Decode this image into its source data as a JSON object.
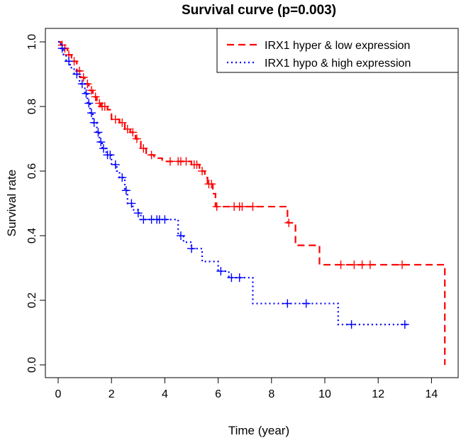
{
  "chart_data": {
    "type": "line",
    "title": "Survival curve (p=0.003)",
    "xlabel": "Time (year)",
    "ylabel": "Survival rate",
    "xlim": [
      0,
      15
    ],
    "ylim": [
      0,
      1.0
    ],
    "xticks": [
      "0",
      "2",
      "4",
      "6",
      "8",
      "10",
      "12",
      "14"
    ],
    "yticks": [
      "0.0",
      "0.2",
      "0.4",
      "0.6",
      "0.8",
      "1.0"
    ],
    "grid": false,
    "legend": {
      "placement": "top-right",
      "entries": [
        "IRX1 hyper & low expression",
        "IRX1 hypo & high expression"
      ]
    },
    "series": [
      {
        "name": "IRX1 hyper & low expression",
        "color": "#ff0000",
        "dash": "dashed",
        "steps": [
          [
            0,
            1.0
          ],
          [
            0.1,
            0.99
          ],
          [
            0.2,
            0.98
          ],
          [
            0.35,
            0.96
          ],
          [
            0.5,
            0.94
          ],
          [
            0.7,
            0.91
          ],
          [
            0.85,
            0.89
          ],
          [
            1.0,
            0.87
          ],
          [
            1.15,
            0.85
          ],
          [
            1.3,
            0.83
          ],
          [
            1.45,
            0.81
          ],
          [
            1.6,
            0.8
          ],
          [
            1.85,
            0.79
          ],
          [
            2.0,
            0.76
          ],
          [
            2.3,
            0.75
          ],
          [
            2.5,
            0.73
          ],
          [
            2.7,
            0.72
          ],
          [
            2.9,
            0.7
          ],
          [
            3.1,
            0.67
          ],
          [
            3.3,
            0.65
          ],
          [
            3.6,
            0.64
          ],
          [
            3.9,
            0.63
          ],
          [
            5.0,
            0.62
          ],
          [
            5.3,
            0.6
          ],
          [
            5.5,
            0.58
          ],
          [
            5.6,
            0.56
          ],
          [
            5.8,
            0.53
          ],
          [
            5.9,
            0.49
          ],
          [
            8.6,
            0.44
          ],
          [
            8.9,
            0.37
          ],
          [
            9.8,
            0.31
          ],
          [
            14.5,
            0.0
          ]
        ],
        "end": 14.5,
        "censor": [
          [
            0.15,
            0.99
          ],
          [
            0.25,
            0.97
          ],
          [
            0.4,
            0.95
          ],
          [
            0.6,
            0.93
          ],
          [
            0.8,
            0.9
          ],
          [
            0.95,
            0.88
          ],
          [
            1.1,
            0.86
          ],
          [
            1.25,
            0.84
          ],
          [
            1.4,
            0.82
          ],
          [
            1.55,
            0.8
          ],
          [
            1.65,
            0.8
          ],
          [
            1.75,
            0.8
          ],
          [
            2.15,
            0.76
          ],
          [
            2.4,
            0.75
          ],
          [
            2.6,
            0.73
          ],
          [
            2.8,
            0.72
          ],
          [
            2.95,
            0.7
          ],
          [
            3.2,
            0.67
          ],
          [
            3.5,
            0.65
          ],
          [
            4.2,
            0.63
          ],
          [
            4.5,
            0.63
          ],
          [
            4.6,
            0.63
          ],
          [
            4.8,
            0.63
          ],
          [
            5.1,
            0.62
          ],
          [
            5.2,
            0.61
          ],
          [
            5.4,
            0.6
          ],
          [
            5.65,
            0.56
          ],
          [
            5.75,
            0.56
          ],
          [
            5.95,
            0.53
          ],
          [
            6.6,
            0.49
          ],
          [
            6.8,
            0.49
          ],
          [
            6.9,
            0.49
          ],
          [
            7.3,
            0.49
          ],
          [
            8.65,
            0.44
          ],
          [
            10.6,
            0.31
          ],
          [
            11.1,
            0.31
          ],
          [
            11.4,
            0.31
          ],
          [
            11.7,
            0.31
          ],
          [
            12.9,
            0.31
          ]
        ]
      },
      {
        "name": "IRX1 hypo & high expression",
        "color": "#0000ff",
        "dash": "dotted",
        "steps": [
          [
            0,
            1.0
          ],
          [
            0.1,
            0.98
          ],
          [
            0.2,
            0.96
          ],
          [
            0.3,
            0.94
          ],
          [
            0.45,
            0.92
          ],
          [
            0.6,
            0.9
          ],
          [
            0.8,
            0.87
          ],
          [
            1.0,
            0.84
          ],
          [
            1.1,
            0.81
          ],
          [
            1.2,
            0.78
          ],
          [
            1.3,
            0.75
          ],
          [
            1.45,
            0.72
          ],
          [
            1.55,
            0.69
          ],
          [
            1.65,
            0.67
          ],
          [
            1.8,
            0.65
          ],
          [
            2.0,
            0.62
          ],
          [
            2.2,
            0.6
          ],
          [
            2.3,
            0.58
          ],
          [
            2.5,
            0.54
          ],
          [
            2.6,
            0.5
          ],
          [
            2.8,
            0.48
          ],
          [
            3.0,
            0.47
          ],
          [
            3.1,
            0.45
          ],
          [
            4.5,
            0.4
          ],
          [
            4.7,
            0.38
          ],
          [
            5.0,
            0.36
          ],
          [
            5.4,
            0.32
          ],
          [
            6.0,
            0.29
          ],
          [
            6.4,
            0.27
          ],
          [
            7.3,
            0.19
          ],
          [
            10.5,
            0.125
          ]
        ],
        "end": 13.1,
        "censor": [
          [
            0.15,
            0.97
          ],
          [
            0.4,
            0.93
          ],
          [
            0.7,
            0.89
          ],
          [
            0.9,
            0.86
          ],
          [
            1.05,
            0.82
          ],
          [
            1.15,
            0.8
          ],
          [
            1.25,
            0.77
          ],
          [
            1.35,
            0.74
          ],
          [
            1.5,
            0.7
          ],
          [
            1.6,
            0.68
          ],
          [
            1.7,
            0.67
          ],
          [
            1.85,
            0.65
          ],
          [
            1.95,
            0.63
          ],
          [
            2.15,
            0.61
          ],
          [
            2.4,
            0.58
          ],
          [
            2.55,
            0.52
          ],
          [
            2.75,
            0.49
          ],
          [
            3.0,
            0.47
          ],
          [
            3.2,
            0.45
          ],
          [
            3.5,
            0.45
          ],
          [
            3.7,
            0.45
          ],
          [
            3.8,
            0.45
          ],
          [
            4.0,
            0.45
          ],
          [
            4.6,
            0.4
          ],
          [
            5.0,
            0.38
          ],
          [
            6.1,
            0.29
          ],
          [
            6.5,
            0.27
          ],
          [
            6.8,
            0.27
          ],
          [
            8.6,
            0.19
          ],
          [
            9.3,
            0.19
          ],
          [
            11.0,
            0.125
          ],
          [
            13.0,
            0.125
          ]
        ]
      }
    ]
  }
}
